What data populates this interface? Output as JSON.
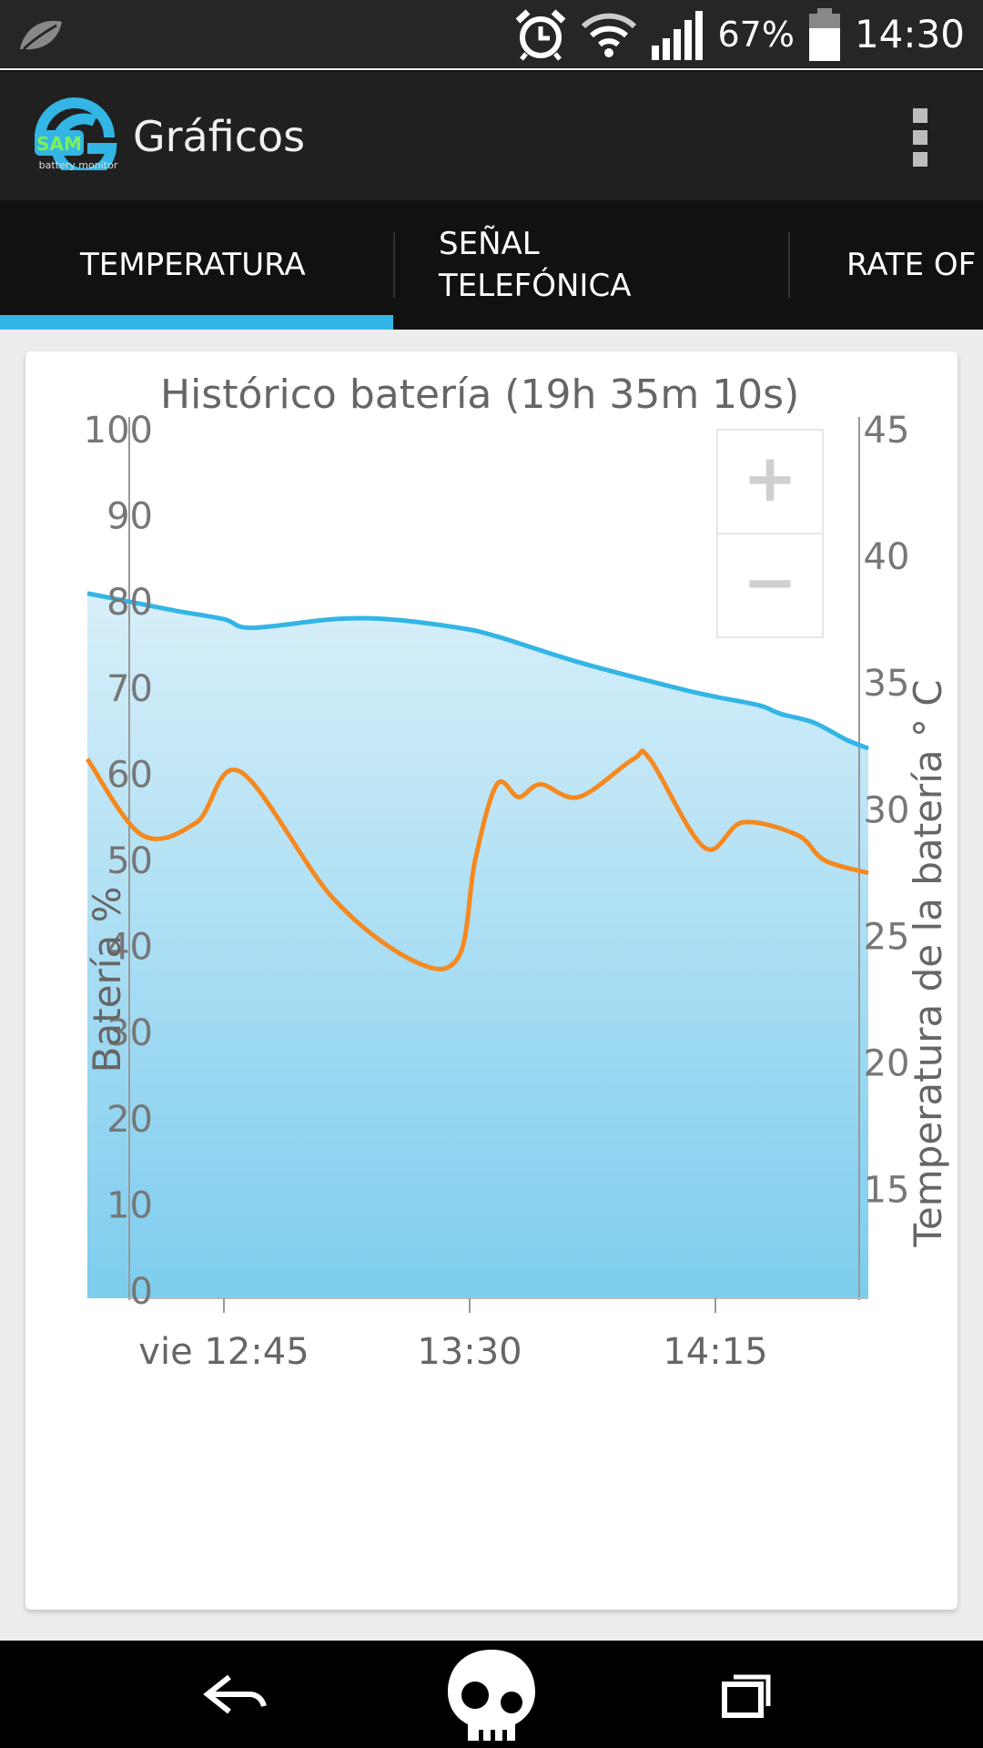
{
  "status_bar": {
    "battery_percent": "67%",
    "time": "14:30",
    "icons": [
      "leaf-icon",
      "alarm-icon",
      "wifi-icon",
      "signal-icon",
      "battery-icon"
    ]
  },
  "app_bar": {
    "title": "Gráficos",
    "logo_text": "SAM",
    "logo_subtitle": "battery monitor"
  },
  "tabs": [
    {
      "label": "TEMPERATURA",
      "selected": true
    },
    {
      "label_line1": "SEÑAL",
      "label_line2": "TELEFÓNICA",
      "selected": false
    },
    {
      "label": "RATE OF",
      "selected": false
    }
  ],
  "colors": {
    "accent": "#33b5e5",
    "battery_line": "#33b5e5",
    "temperature_line": "#f5891f"
  },
  "chart_data": {
    "type": "area",
    "title": "Histórico batería (19h 35m 10s)",
    "ylabel_left": "Batería %",
    "ylabel_right": "Temperatura de la batería ° C",
    "ylim_left": [
      0,
      100
    ],
    "ylim_right": [
      11,
      45
    ],
    "left_ticks": [
      "0",
      "10",
      "20",
      "30",
      "40",
      "50",
      "60",
      "70",
      "80",
      "90",
      "100"
    ],
    "right_ticks": [
      "15",
      "20",
      "25",
      "30",
      "35",
      "40",
      "45"
    ],
    "x_tick_labels": [
      "vie 12:45",
      "13:30",
      "14:15"
    ],
    "x_tick_minutes": [
      765,
      810,
      855
    ],
    "xlim_minutes": [
      740,
      883
    ],
    "series": [
      {
        "name": "Batería %",
        "x_minutes": [
          740,
          748,
          756,
          765,
          770,
          785,
          795,
          808,
          815,
          830,
          848,
          855,
          863,
          867,
          873,
          879,
          883
        ],
        "values": [
          81,
          80,
          79,
          78,
          77,
          78,
          78,
          77,
          76,
          73,
          70,
          69,
          68,
          67,
          66,
          64,
          63
        ],
        "color": "#33b5e5",
        "fill": true
      },
      {
        "name": "Temperatura de la batería ° C",
        "x_minutes": [
          740,
          750,
          760,
          768,
          785,
          800,
          808,
          811,
          815,
          819,
          823,
          830,
          840,
          843,
          853,
          860,
          870,
          875,
          883
        ],
        "values": [
          32,
          29,
          29.5,
          31.5,
          26.5,
          24,
          24.2,
          28,
          31,
          30.5,
          31,
          30.5,
          32,
          32,
          28.5,
          29.5,
          29,
          28,
          27.5
        ],
        "color": "#f5891f",
        "fill": false
      }
    ],
    "zoom_controls": {
      "zoom_in": "+",
      "zoom_out": "−"
    },
    "grid": false
  },
  "nav_bar": {
    "icons": [
      "back-icon",
      "home-skull-icon",
      "recents-icon"
    ]
  }
}
